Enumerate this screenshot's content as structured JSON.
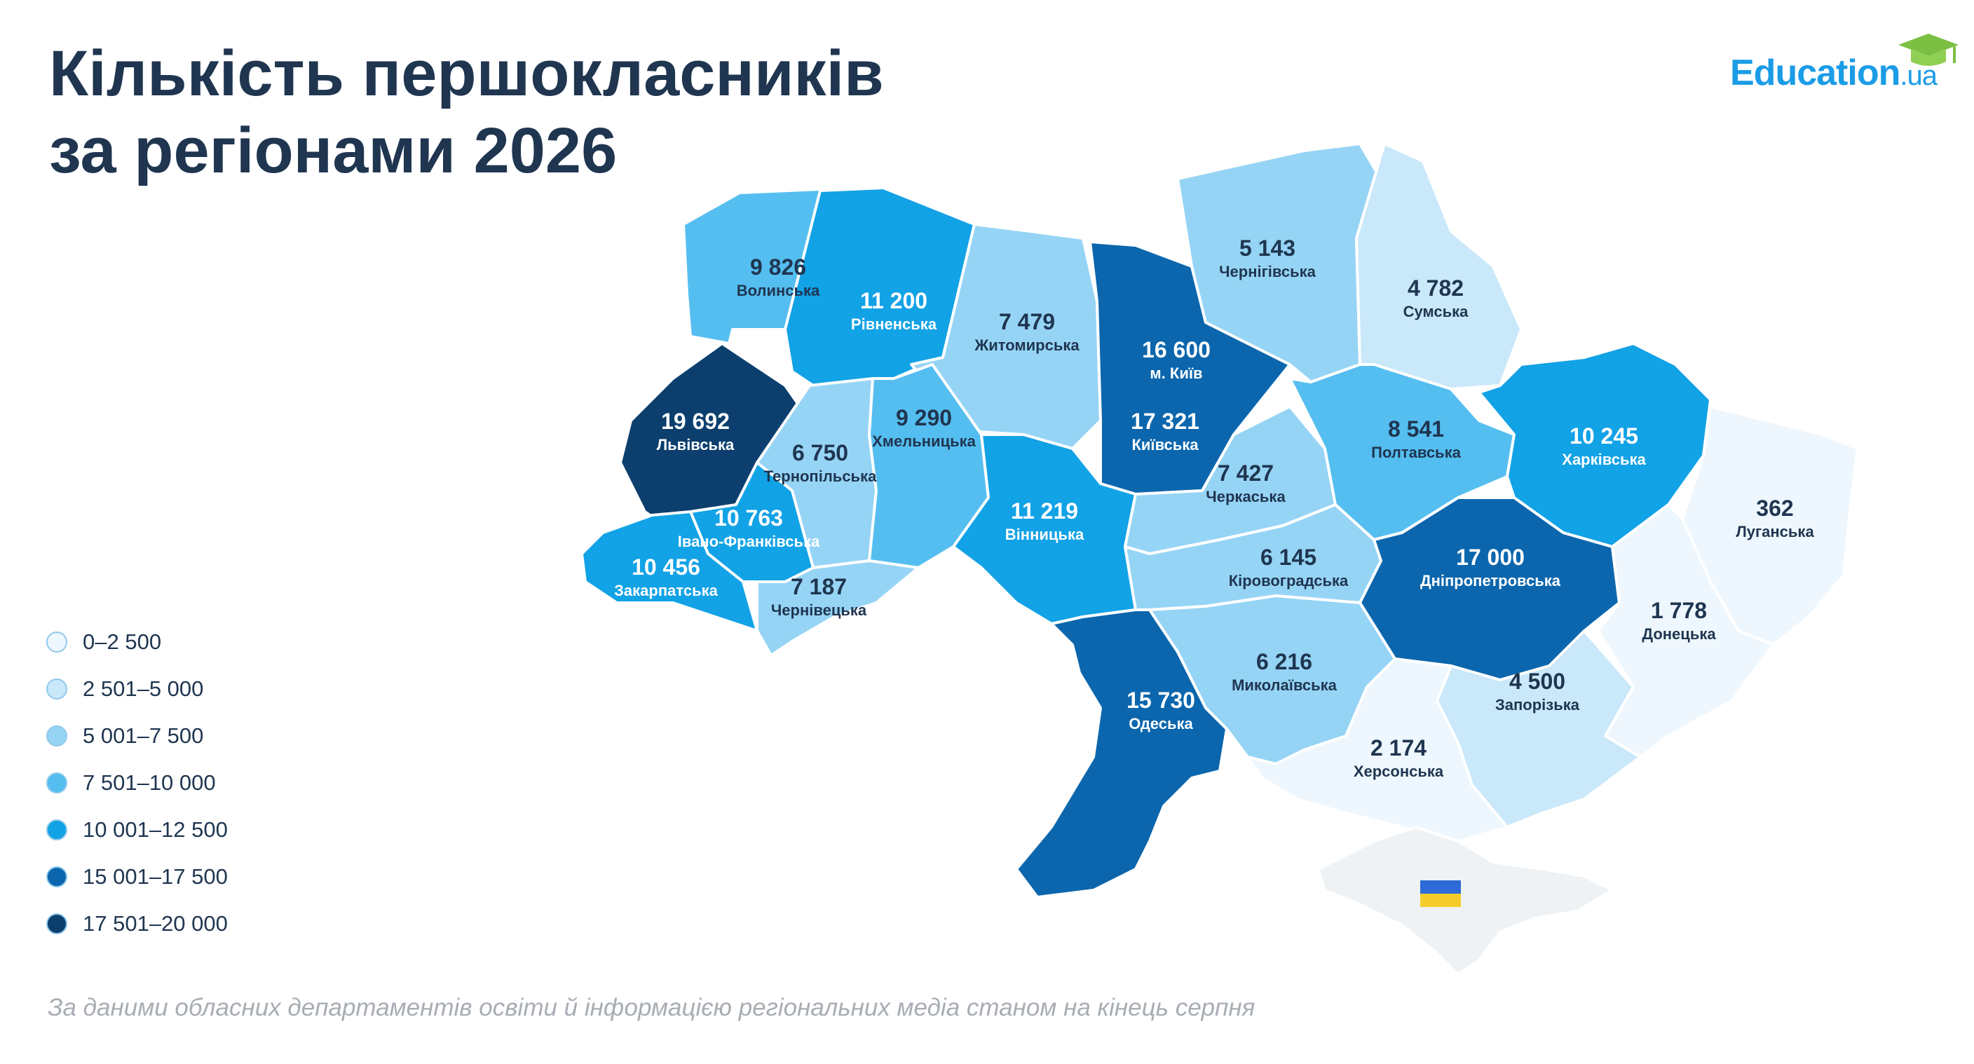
{
  "title": {
    "line1": "Кількість першокласників",
    "line2": "за регіонами 2026"
  },
  "logo": {
    "main": "Education",
    "suffix": ".ua",
    "icon": "graduation-cap-icon",
    "color": "#1b9ce6"
  },
  "legend": [
    {
      "label": "0–2 500",
      "color": "#eef7fd"
    },
    {
      "label": "2 501–5 000",
      "color": "#c9e8fa"
    },
    {
      "label": "5 001–7 500",
      "color": "#96d4f5"
    },
    {
      "label": "7 501–10 000",
      "color": "#55bef0"
    },
    {
      "label": "10 001–12 500",
      "color": "#12a2e6"
    },
    {
      "label": "15 001–17 500",
      "color": "#0b66ad"
    },
    {
      "label": "17 501–20 000",
      "color": "#0c3f6e"
    }
  ],
  "regions": [
    {
      "id": "volynska",
      "value": "9 826",
      "name": "Волинська",
      "color": "#55bef0"
    },
    {
      "id": "rivnenska",
      "value": "11 200",
      "name": "Рівненська",
      "color": "#12a2e6"
    },
    {
      "id": "zhytomyrska",
      "value": "7 479",
      "name": "Житомирська",
      "color": "#96d4f5"
    },
    {
      "id": "kyiv-city",
      "value": "16 600",
      "name": "м. Київ",
      "color": "#0b66ad"
    },
    {
      "id": "kyivska",
      "value": "17 321",
      "name": "Київська",
      "color": "#0b66ad"
    },
    {
      "id": "chernihivska",
      "value": "5 143",
      "name": "Чернігівська",
      "color": "#96d4f5"
    },
    {
      "id": "sumska",
      "value": "4 782",
      "name": "Сумська",
      "color": "#c9e8fa"
    },
    {
      "id": "lvivska",
      "value": "19 692",
      "name": "Львівська",
      "color": "#0c3f6e"
    },
    {
      "id": "ternopilska",
      "value": "6 750",
      "name": "Тернопільська",
      "color": "#96d4f5"
    },
    {
      "id": "khmelnytska",
      "value": "9 290",
      "name": "Хмельницька",
      "color": "#55bef0"
    },
    {
      "id": "vinnytska",
      "value": "11 219",
      "name": "Вінницька",
      "color": "#12a2e6"
    },
    {
      "id": "cherkaska",
      "value": "7 427",
      "name": "Черкаська",
      "color": "#96d4f5"
    },
    {
      "id": "poltavska",
      "value": "8 541",
      "name": "Полтавська",
      "color": "#55bef0"
    },
    {
      "id": "kharkivska",
      "value": "10 245",
      "name": "Харківська",
      "color": "#12a2e6"
    },
    {
      "id": "luhanska",
      "value": "362",
      "name": "Луганська",
      "color": "#eef7fd"
    },
    {
      "id": "ivano-frankivska",
      "value": "10 763",
      "name": "Івано-Франківська",
      "color": "#12a2e6"
    },
    {
      "id": "zakarpatska",
      "value": "10 456",
      "name": "Закарпатська",
      "color": "#12a2e6"
    },
    {
      "id": "chernivetska",
      "value": "7 187",
      "name": "Чернівецька",
      "color": "#96d4f5"
    },
    {
      "id": "kirovohradska",
      "value": "6 145",
      "name": "Кіровоградська",
      "color": "#96d4f5"
    },
    {
      "id": "dnipropetrovska",
      "value": "17 000",
      "name": "Дніпропетровська",
      "color": "#0b66ad"
    },
    {
      "id": "donetska",
      "value": "1 778",
      "name": "Донецька",
      "color": "#eef7fd"
    },
    {
      "id": "odeska",
      "value": "15 730",
      "name": "Одеська",
      "color": "#0b66ad"
    },
    {
      "id": "mykolaivska",
      "value": "6 216",
      "name": "Миколаївська",
      "color": "#96d4f5"
    },
    {
      "id": "zaporizka",
      "value": "4 500",
      "name": "Запорізька",
      "color": "#c9e8fa"
    },
    {
      "id": "khersonska",
      "value": "2 174",
      "name": "Херсонська",
      "color": "#eef7fd"
    },
    {
      "id": "crimea",
      "value": "",
      "name": "",
      "color": "#eef2f5"
    }
  ],
  "crimea_flag": "ukraine-flag-icon",
  "source": "За даними обласних департаментів освіти й інформацією регіональних медіа станом на кінець серпня"
}
